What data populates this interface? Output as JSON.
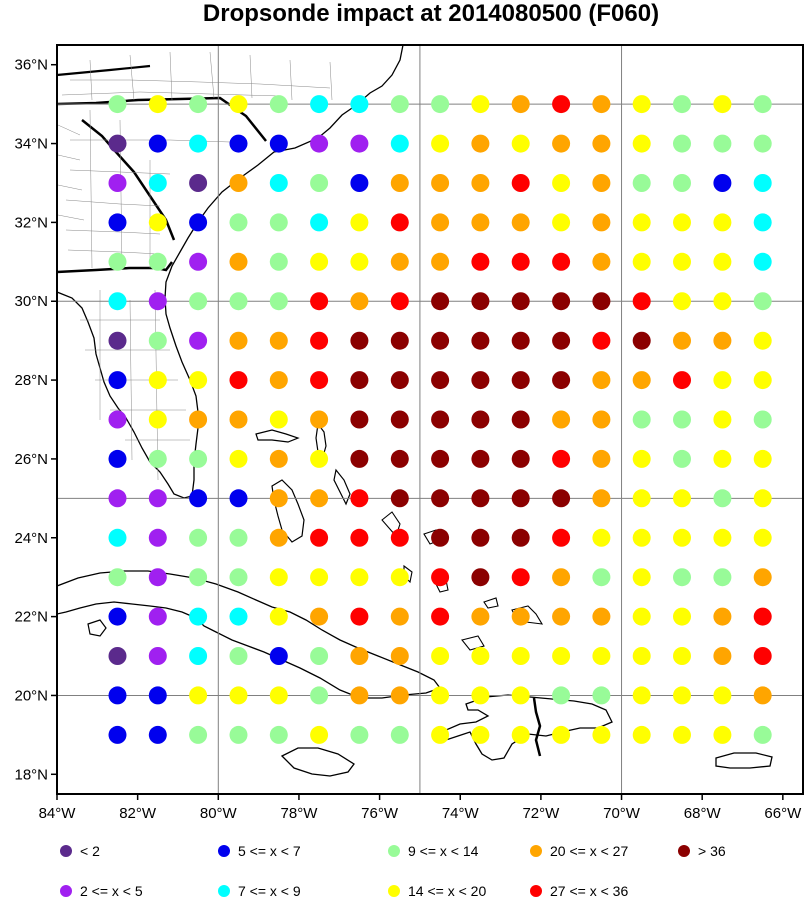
{
  "title": "Dropsonde impact at 2014080500 (F060)",
  "colors": {
    "c1": "#5b2a8c",
    "c2": "#a020f0",
    "c3": "#0000ee",
    "c4": "#00ffff",
    "c5": "#98fb98",
    "c6": "#ffff00",
    "c7": "#ffa500",
    "c8": "#ff0000",
    "c9": "#8b0000"
  },
  "legend": [
    {
      "code": "c1",
      "label": "<  2"
    },
    {
      "code": "c3",
      "label": "5 <= x <  7"
    },
    {
      "code": "c5",
      "label": "9 <= x < 14"
    },
    {
      "code": "c7",
      "label": "20 <= x < 27"
    },
    {
      "code": "c9",
      "label": "> 36"
    },
    {
      "code": "c2",
      "label": "2 <= x <  5"
    },
    {
      "code": "c4",
      "label": "7 <= x <  9"
    },
    {
      "code": "c6",
      "label": "14 <= x < 20"
    },
    {
      "code": "c8",
      "label": "27 <= x < 36"
    }
  ],
  "axes": {
    "lon_min": -84,
    "lon_max": -65.5,
    "lat_min": 17.5,
    "lat_max": 36.5,
    "x_ticks": [
      {
        "value": -84,
        "label": "84°W"
      },
      {
        "value": -82,
        "label": "82°W"
      },
      {
        "value": -80,
        "label": "80°W"
      },
      {
        "value": -78,
        "label": "78°W"
      },
      {
        "value": -76,
        "label": "76°W"
      },
      {
        "value": -74,
        "label": "74°W"
      },
      {
        "value": -72,
        "label": "72°W"
      },
      {
        "value": -70,
        "label": "70°W"
      },
      {
        "value": -68,
        "label": "68°W"
      },
      {
        "value": -66,
        "label": "66°W"
      }
    ],
    "y_ticks": [
      {
        "value": 36,
        "label": "36°N"
      },
      {
        "value": 34,
        "label": "34°N"
      },
      {
        "value": 32,
        "label": "32°N"
      },
      {
        "value": 30,
        "label": "30°N"
      },
      {
        "value": 28,
        "label": "28°N"
      },
      {
        "value": 26,
        "label": "26°N"
      },
      {
        "value": 24,
        "label": "24°N"
      },
      {
        "value": 22,
        "label": "22°N"
      },
      {
        "value": 20,
        "label": "20°N"
      },
      {
        "value": 18,
        "label": "18°N"
      }
    ],
    "grid_lons": [
      -80,
      -75,
      -70
    ],
    "grid_lats": [
      35,
      30,
      25,
      20
    ]
  },
  "chart_data": {
    "type": "scatter",
    "title": "Dropsonde impact at 2014080500 (F060)",
    "grid": true,
    "legend_position": "bottom",
    "lon_start": -82.5,
    "lon_step": 1,
    "lat_start": 35,
    "lat_step": -1,
    "rows": [
      [
        "c5",
        "c6",
        "c5",
        "c6",
        "c5",
        "c4",
        "c4",
        "c5",
        "c5",
        "c6",
        "c7",
        "c8",
        "c7",
        "c6",
        "c5",
        "c6",
        "c5"
      ],
      [
        "c1",
        "c3",
        "c4",
        "c3",
        "c3",
        "c2",
        "c2",
        "c4",
        "c6",
        "c7",
        "c6",
        "c7",
        "c7",
        "c6",
        "c5",
        "c5",
        "c5"
      ],
      [
        "c2",
        "c4",
        "c1",
        "c7",
        "c4",
        "c5",
        "c3",
        "c7",
        "c7",
        "c7",
        "c8",
        "c6",
        "c7",
        "c5",
        "c5",
        "c3",
        "c4"
      ],
      [
        "c3",
        "c6",
        "c3",
        "c5",
        "c5",
        "c4",
        "c6",
        "c8",
        "c7",
        "c7",
        "c7",
        "c6",
        "c7",
        "c6",
        "c6",
        "c6",
        "c4"
      ],
      [
        "c5",
        "c5",
        "c2",
        "c7",
        "c5",
        "c6",
        "c6",
        "c7",
        "c7",
        "c8",
        "c8",
        "c8",
        "c7",
        "c6",
        "c6",
        "c6",
        "c4"
      ],
      [
        "c4",
        "c2",
        "c5",
        "c5",
        "c5",
        "c8",
        "c7",
        "c8",
        "c9",
        "c9",
        "c9",
        "c9",
        "c9",
        "c8",
        "c6",
        "c6",
        "c5"
      ],
      [
        "c1",
        "c5",
        "c2",
        "c7",
        "c7",
        "c8",
        "c9",
        "c9",
        "c9",
        "c9",
        "c9",
        "c9",
        "c8",
        "c9",
        "c7",
        "c7",
        "c6"
      ],
      [
        "c3",
        "c6",
        "c6",
        "c8",
        "c7",
        "c8",
        "c9",
        "c9",
        "c9",
        "c9",
        "c9",
        "c9",
        "c7",
        "c7",
        "c8",
        "c6",
        "c6"
      ],
      [
        "c2",
        "c6",
        "c7",
        "c7",
        "c6",
        "c7",
        "c9",
        "c9",
        "c9",
        "c9",
        "c9",
        "c7",
        "c7",
        "c5",
        "c5",
        "c6",
        "c5"
      ],
      [
        "c3",
        "c5",
        "c5",
        "c6",
        "c7",
        "c6",
        "c9",
        "c9",
        "c9",
        "c9",
        "c9",
        "c8",
        "c7",
        "c6",
        "c5",
        "c6",
        "c6"
      ],
      [
        "c2",
        "c2",
        "c3",
        "c3",
        "c7",
        "c7",
        "c8",
        "c9",
        "c9",
        "c9",
        "c9",
        "c9",
        "c7",
        "c6",
        "c6",
        "c5",
        "c6"
      ],
      [
        "c4",
        "c2",
        "c5",
        "c5",
        "c7",
        "c8",
        "c8",
        "c8",
        "c9",
        "c9",
        "c9",
        "c8",
        "c6",
        "c6",
        "c6",
        "c6",
        "c6"
      ],
      [
        "c5",
        "c2",
        "c5",
        "c5",
        "c6",
        "c6",
        "c6",
        "c6",
        "c8",
        "c9",
        "c8",
        "c7",
        "c5",
        "c6",
        "c5",
        "c5",
        "c7"
      ],
      [
        "c3",
        "c2",
        "c4",
        "c4",
        "c6",
        "c7",
        "c8",
        "c7",
        "c8",
        "c7",
        "c7",
        "c7",
        "c7",
        "c6",
        "c6",
        "c7",
        "c8"
      ],
      [
        "c1",
        "c2",
        "c4",
        "c5",
        "c3",
        "c5",
        "c7",
        "c7",
        "c6",
        "c6",
        "c6",
        "c6",
        "c6",
        "c6",
        "c6",
        "c7",
        "c8"
      ],
      [
        "c3",
        "c3",
        "c6",
        "c6",
        "c6",
        "c5",
        "c7",
        "c7",
        "c6",
        "c6",
        "c6",
        "c5",
        "c5",
        "c6",
        "c6",
        "c6",
        "c7"
      ],
      [
        "c3",
        "c3",
        "c5",
        "c5",
        "c5",
        "c6",
        "c5",
        "c5",
        "c6",
        "c6",
        "c6",
        "c6",
        "c6",
        "c6",
        "c6",
        "c6",
        "c5"
      ]
    ]
  }
}
